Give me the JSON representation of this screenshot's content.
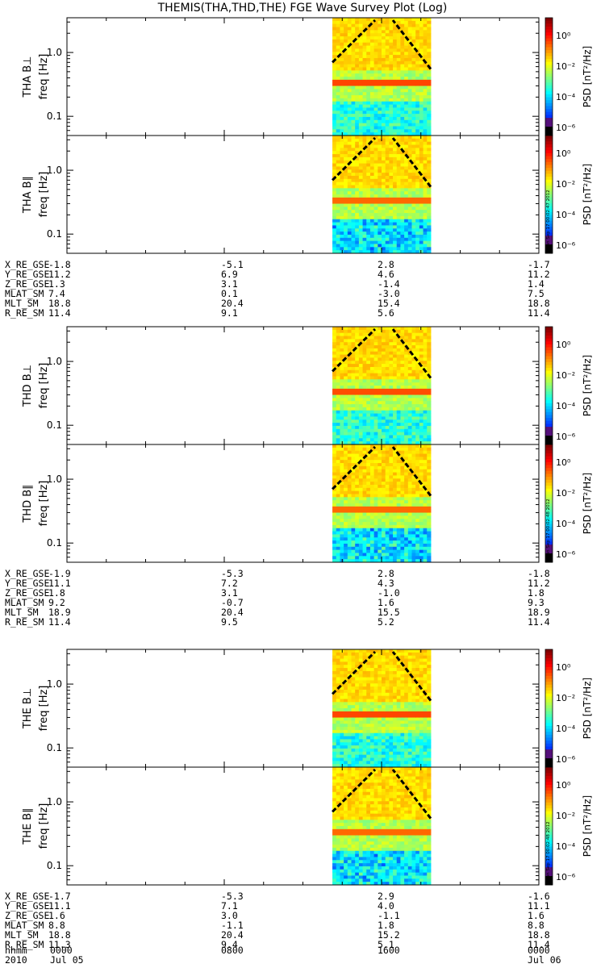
{
  "title": "THEMIS(THA,THD,THE) FGE Wave Survey Plot (Log)",
  "colors": {
    "background": "#ffffff",
    "spectrogram_low": "#1a3fbf",
    "spectrogram_high": "#d81a12",
    "mode_line": "#000000"
  },
  "chart_data": [
    {
      "type": "heatmap",
      "probe": "THA",
      "panels": [
        {
          "ylabel": "THA B⊥",
          "ylabel2": "freq [Hz]",
          "yticks": [
            "1.0",
            "0.1"
          ],
          "ylim": [
            0.05,
            3.5
          ],
          "scale": "log",
          "data_interval_hhmm": [
            "1330",
            "1830"
          ],
          "peak_band_hz": 0.32,
          "peak_psd_log10": 0.5,
          "colorbar": {
            "label": "PSD [nT²/Hz]",
            "ticks": [
              "10⁰",
              "10⁻²",
              "10⁻⁴",
              "10⁻⁶"
            ]
          }
        },
        {
          "ylabel": "THA B∥",
          "ylabel2": "freq [Hz]",
          "yticks": [
            "1.0",
            "0.1"
          ],
          "ylim": [
            0.05,
            3.5
          ],
          "scale": "log",
          "data_interval_hhmm": [
            "1330",
            "1830"
          ],
          "peak_band_hz": 0.32,
          "peak_psd_log10": -0.5,
          "colorbar": {
            "label": "PSD [nT²/Hz]",
            "ticks": [
              "10⁰",
              "10⁻²",
              "10⁻⁴",
              "10⁻⁶"
            ]
          },
          "stamp": "Mon Sep 17 00:02:47 2012"
        }
      ],
      "ephemeris": [
        {
          "label": "X_RE_GSE",
          "values": [
            "-1.8",
            "-5.1",
            "2.8",
            "-1.7"
          ]
        },
        {
          "label": "Y_RE_GSE",
          "values": [
            "11.2",
            "6.9",
            "4.6",
            "11.2"
          ]
        },
        {
          "label": "Z_RE_GSE",
          "values": [
            "1.3",
            "3.1",
            "-1.4",
            "1.4"
          ]
        },
        {
          "label": "MLAT_SM",
          "values": [
            "7.4",
            "0.1",
            "-3.0",
            "7.5"
          ]
        },
        {
          "label": "MLT_SM",
          "values": [
            "18.8",
            "20.4",
            "15.4",
            "18.8"
          ]
        },
        {
          "label": "R_RE_SM",
          "values": [
            "11.4",
            "9.1",
            "5.6",
            "11.4"
          ]
        }
      ]
    },
    {
      "type": "heatmap",
      "probe": "THD",
      "panels": [
        {
          "ylabel": "THD B⊥",
          "ylabel2": "freq [Hz]",
          "yticks": [
            "1.0",
            "0.1"
          ],
          "ylim": [
            0.05,
            3.5
          ],
          "scale": "log",
          "data_interval_hhmm": [
            "1330",
            "1830"
          ],
          "peak_band_hz": 0.32,
          "peak_psd_log10": 0.3,
          "colorbar": {
            "label": "PSD [nT²/Hz]",
            "ticks": [
              "10⁰",
              "10⁻²",
              "10⁻⁴",
              "10⁻⁶"
            ]
          }
        },
        {
          "ylabel": "THD B∥",
          "ylabel2": "freq [Hz]",
          "yticks": [
            "1.0",
            "0.1"
          ],
          "ylim": [
            0.05,
            3.5
          ],
          "scale": "log",
          "data_interval_hhmm": [
            "1330",
            "1830"
          ],
          "peak_band_hz": 0.32,
          "peak_psd_log10": -0.5,
          "colorbar": {
            "label": "PSD [nT²/Hz]",
            "ticks": [
              "10⁰",
              "10⁻²",
              "10⁻⁴",
              "10⁻⁶"
            ]
          },
          "stamp": "Mon Sep 17 00:02:48 2012"
        }
      ],
      "ephemeris": [
        {
          "label": "X_RE_GSE",
          "values": [
            "-1.9",
            "-5.3",
            "2.8",
            "-1.8"
          ]
        },
        {
          "label": "Y_RE_GSE",
          "values": [
            "11.1",
            "7.2",
            "4.3",
            "11.2"
          ]
        },
        {
          "label": "Z_RE_GSE",
          "values": [
            "1.8",
            "3.1",
            "-1.0",
            "1.8"
          ]
        },
        {
          "label": "MLAT_SM",
          "values": [
            "9.2",
            "-0.7",
            "1.6",
            "9.3"
          ]
        },
        {
          "label": "MLT_SM",
          "values": [
            "18.9",
            "20.4",
            "15.5",
            "18.9"
          ]
        },
        {
          "label": "R_RE_SM",
          "values": [
            "11.4",
            "9.5",
            "5.2",
            "11.4"
          ]
        }
      ]
    },
    {
      "type": "heatmap",
      "probe": "THE",
      "panels": [
        {
          "ylabel": "THE B⊥",
          "ylabel2": "freq [Hz]",
          "yticks": [
            "1.0",
            "0.1"
          ],
          "ylim": [
            0.05,
            3.5
          ],
          "scale": "log",
          "data_interval_hhmm": [
            "1330",
            "1830"
          ],
          "peak_band_hz": 0.32,
          "peak_psd_log10": 0.5,
          "colorbar": {
            "label": "PSD [nT²/Hz]",
            "ticks": [
              "10⁰",
              "10⁻²",
              "10⁻⁴",
              "10⁻⁶"
            ]
          }
        },
        {
          "ylabel": "THE B∥",
          "ylabel2": "freq [Hz]",
          "yticks": [
            "1.0",
            "0.1"
          ],
          "ylim": [
            0.05,
            3.5
          ],
          "scale": "log",
          "data_interval_hhmm": [
            "1330",
            "1830"
          ],
          "peak_band_hz": 0.32,
          "peak_psd_log10": -0.5,
          "colorbar": {
            "label": "PSD [nT²/Hz]",
            "ticks": [
              "10⁰",
              "10⁻²",
              "10⁻⁴",
              "10⁻⁶"
            ]
          },
          "stamp": "Mon Sep 17 00:02:48 2012"
        }
      ],
      "ephemeris": [
        {
          "label": "X_RE_GSE",
          "values": [
            "-1.7",
            "-5.3",
            "2.9",
            "-1.6"
          ]
        },
        {
          "label": "Y_RE_GSE",
          "values": [
            "11.1",
            "7.1",
            "4.0",
            "11.1"
          ]
        },
        {
          "label": "Z_RE_GSE",
          "values": [
            "1.6",
            "3.0",
            "-1.1",
            "1.6"
          ]
        },
        {
          "label": "MLAT_SM",
          "values": [
            "8.8",
            "-1.1",
            "1.8",
            "8.8"
          ]
        },
        {
          "label": "MLT_SM",
          "values": [
            "18.8",
            "20.4",
            "15.2",
            "18.8"
          ]
        },
        {
          "label": "R_RE_SM",
          "values": [
            "11.3",
            "9.4",
            "5.1",
            "11.4"
          ]
        }
      ]
    }
  ],
  "time_axis": {
    "rows": [
      {
        "label": "hhmm",
        "values": [
          "0000",
          "0800",
          "1600",
          "0000"
        ]
      },
      {
        "label": "2010",
        "values": [
          "Jul 05",
          "",
          "",
          "Jul 06"
        ]
      }
    ]
  }
}
